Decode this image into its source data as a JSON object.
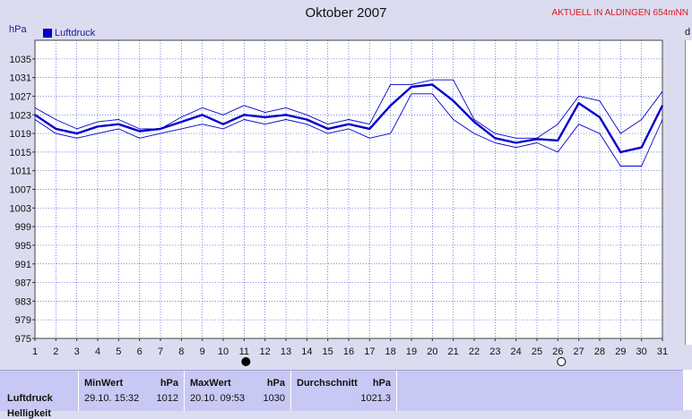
{
  "header": {
    "title": "Oktober 2007",
    "station": "AKTUELL IN ALDINGEN 654mNN",
    "unit": "hPa",
    "edge_letter": "d"
  },
  "colors": {
    "background": "#dcdcf0",
    "plot_background": "#ffffff",
    "series": "#0000cc",
    "grid": "#5050e0",
    "accent_red": "#e0141e"
  },
  "chart_data": {
    "type": "line",
    "title": "Oktober 2007",
    "ylabel": "hPa",
    "xlabel": "",
    "x": [
      1,
      2,
      3,
      4,
      5,
      6,
      7,
      8,
      9,
      10,
      11,
      12,
      13,
      14,
      15,
      16,
      17,
      18,
      19,
      20,
      21,
      22,
      23,
      24,
      25,
      26,
      27,
      28,
      29,
      30,
      31
    ],
    "ylim": [
      975,
      1039
    ],
    "yticks": [
      975,
      979,
      983,
      987,
      991,
      995,
      999,
      1003,
      1007,
      1011,
      1015,
      1019,
      1023,
      1027,
      1031,
      1035
    ],
    "grid": true,
    "legend": "top-left",
    "series": [
      {
        "name": "Luftdruck",
        "role": "mean",
        "values": [
          1023,
          1020,
          1019,
          1020.5,
          1021,
          1019.5,
          1020,
          1021.5,
          1023,
          1021,
          1023,
          1022.5,
          1023,
          1022,
          1020,
          1021,
          1020,
          1025,
          1029,
          1029.5,
          1026,
          1021.5,
          1018,
          1017,
          1017.8,
          1017.5,
          1025.5,
          1022.5,
          1015,
          1016,
          1025
        ]
      },
      {
        "role": "max",
        "values": [
          1024.5,
          1022,
          1020,
          1021.5,
          1022,
          1020,
          1020,
          1022.5,
          1024.5,
          1023,
          1025,
          1023.5,
          1024.5,
          1023,
          1021,
          1022,
          1021,
          1029.5,
          1029.5,
          1030.5,
          1030.5,
          1022,
          1019,
          1018,
          1018,
          1021,
          1027,
          1026,
          1019,
          1022,
          1028
        ]
      },
      {
        "role": "min",
        "values": [
          1022,
          1019,
          1018,
          1019,
          1020,
          1018,
          1019,
          1020,
          1021,
          1020,
          1022,
          1021,
          1022,
          1021,
          1019,
          1020,
          1018,
          1019,
          1027.5,
          1027.5,
          1022,
          1019,
          1017,
          1016,
          1017,
          1015,
          1021,
          1019,
          1012,
          1012,
          1022
        ]
      }
    ],
    "moon_phases": [
      {
        "day": 11,
        "phase": "new moon"
      },
      {
        "day": 26,
        "phase": "full moon"
      }
    ]
  },
  "stats_table": {
    "min": {
      "header": "MinWert",
      "unit": "hPa",
      "datetime": "29.10.  15:32",
      "value": "1012"
    },
    "max": {
      "header": "MaxWert",
      "unit": "hPa",
      "datetime": "20.10.  09:53",
      "value": "1030"
    },
    "avg": {
      "header": "Durchschnitt",
      "unit": "hPa",
      "value": "1021.3"
    },
    "row_label": "Luftdruck",
    "row_label_2": "Helligkeit"
  }
}
